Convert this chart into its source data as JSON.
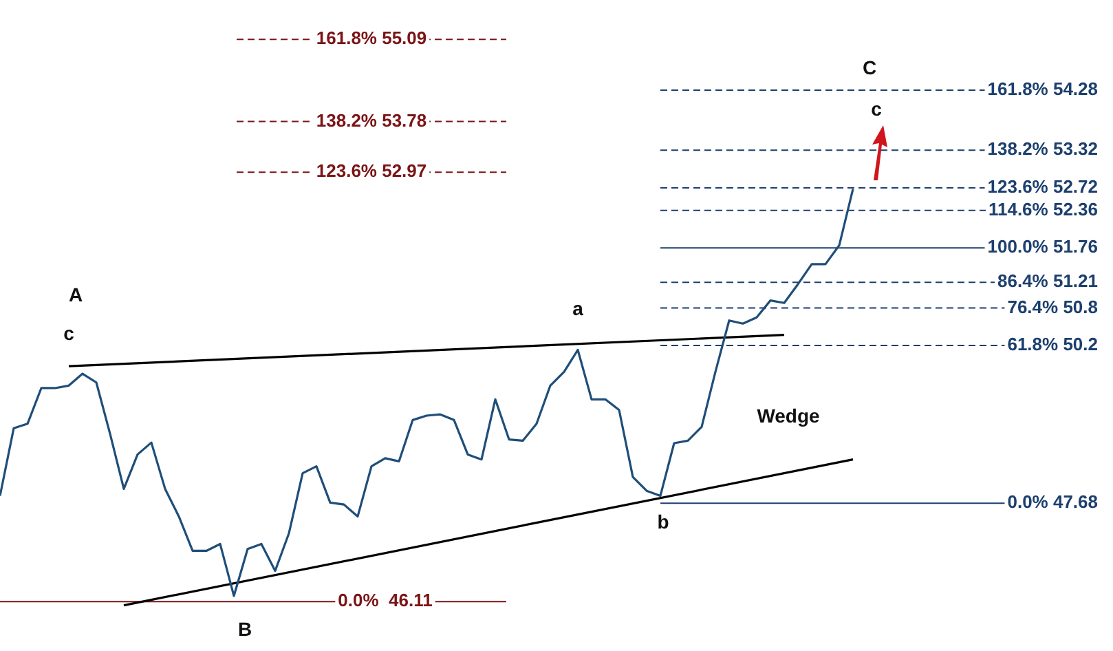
{
  "chart_data": {
    "type": "line",
    "ylim": [
      45.32,
      55.72
    ],
    "tick_labels": false,
    "legend": false,
    "marker": "none",
    "categories": [
      null,
      null,
      null,
      null,
      null,
      null,
      null,
      null,
      null,
      null,
      null,
      null,
      null,
      null,
      null,
      null,
      null,
      null,
      null,
      null,
      null,
      null,
      null,
      null,
      null,
      null,
      null,
      null,
      null,
      null,
      null,
      null,
      null,
      null,
      null,
      null,
      null,
      null,
      null,
      null,
      null,
      null,
      null,
      null,
      null,
      null,
      null,
      null,
      null,
      null,
      null,
      null,
      null,
      null,
      null,
      null,
      null,
      null,
      null,
      null,
      null,
      null,
      null
    ],
    "series": [
      {
        "color": "#1f4e79",
        "values": [
          47.8,
          48.88,
          48.95,
          49.52,
          49.52,
          49.56,
          49.75,
          49.61,
          48.79,
          47.91,
          48.46,
          48.65,
          47.91,
          47.47,
          46.92,
          46.92,
          47.03,
          46.2,
          46.95,
          47.03,
          46.6,
          47.2,
          48.16,
          48.27,
          47.69,
          47.66,
          47.47,
          48.27,
          48.4,
          48.35,
          49.01,
          49.08,
          49.1,
          49.01,
          48.46,
          48.38,
          49.34,
          48.7,
          48.68,
          48.95,
          49.56,
          49.78,
          50.13,
          49.34,
          49.34,
          49.17,
          48.1,
          47.88,
          47.8,
          48.64,
          48.68,
          48.9,
          49.78,
          50.6,
          50.55,
          50.65,
          50.92,
          50.88,
          51.18,
          51.5,
          51.5,
          51.8,
          52.7
        ]
      },
      {
        "color": "#000000",
        "values": [
          null,
          null,
          null,
          null,
          null,
          49.87,
          null,
          null,
          null,
          null,
          null,
          null,
          null,
          null,
          null,
          null,
          null,
          null,
          null,
          null,
          null,
          null,
          null,
          null,
          null,
          null,
          null,
          null,
          null,
          null,
          null,
          null,
          null,
          null,
          null,
          null,
          null,
          null,
          null,
          null,
          null,
          null,
          null,
          null,
          null,
          null,
          null,
          null,
          null,
          null,
          null,
          null,
          null,
          null,
          null,
          null,
          null,
          50.37,
          null,
          null,
          null,
          null,
          null
        ]
      },
      {
        "color": "#000000",
        "values": [
          null,
          null,
          null,
          null,
          null,
          null,
          null,
          null,
          null,
          46.05,
          null,
          null,
          null,
          null,
          null,
          null,
          null,
          null,
          null,
          null,
          null,
          null,
          null,
          null,
          null,
          null,
          null,
          null,
          null,
          null,
          null,
          null,
          null,
          null,
          null,
          null,
          null,
          null,
          null,
          null,
          null,
          null,
          null,
          null,
          null,
          null,
          null,
          null,
          null,
          null,
          null,
          null,
          null,
          null,
          null,
          null,
          null,
          null,
          null,
          null,
          null,
          null,
          48.38
        ]
      }
    ],
    "ref_lines": [
      {
        "axis": "y",
        "value": 55.09,
        "label": "161.8% 55.09",
        "color": "#7b1416",
        "line_style": "dashed"
      },
      {
        "axis": "y",
        "value": 53.78,
        "label": "138.2% 53.78",
        "color": "#7b1416",
        "line_style": "dashed"
      },
      {
        "axis": "y",
        "value": 52.97,
        "label": "123.6% 52.97",
        "color": "#7b1416",
        "line_style": "dashed"
      },
      {
        "axis": "y",
        "value": 46.11,
        "label": "0.0%  46.11",
        "color": "#7b1416",
        "line_style": "solid"
      },
      {
        "axis": "y",
        "value": 54.28,
        "label": "161.8% 54.28",
        "color": "#1c3f6e",
        "line_style": "dashed"
      },
      {
        "axis": "y",
        "value": 53.32,
        "label": "138.2% 53.32",
        "color": "#1c3f6e",
        "line_style": "dashed"
      },
      {
        "axis": "y",
        "value": 52.72,
        "label": "123.6% 52.72",
        "color": "#1c3f6e",
        "line_style": "dashed"
      },
      {
        "axis": "y",
        "value": 52.36,
        "label": "114.6% 52.36",
        "color": "#1c3f6e",
        "line_style": "dashed"
      },
      {
        "axis": "y",
        "value": 51.76,
        "label": "100.0% 51.76",
        "color": "#1c3f6e",
        "line_style": "solid"
      },
      {
        "axis": "y",
        "value": 51.21,
        "label": "86.4% 51.21",
        "color": "#1c3f6e",
        "line_style": "dashed"
      },
      {
        "axis": "y",
        "value": 50.8,
        "label": "76.4% 50.8",
        "color": "#1c3f6e",
        "line_style": "dashed"
      },
      {
        "axis": "y",
        "value": 50.2,
        "label": "61.8% 50.2",
        "color": "#1c3f6e",
        "line_style": "dashed"
      },
      {
        "axis": "y",
        "value": 47.68,
        "label": "0.0% 47.68",
        "color": "#1c3f6e",
        "line_style": "solid"
      }
    ],
    "annotations": [
      "A",
      "c",
      "a",
      "B",
      "b",
      "C",
      "c",
      "Wedge"
    ]
  }
}
